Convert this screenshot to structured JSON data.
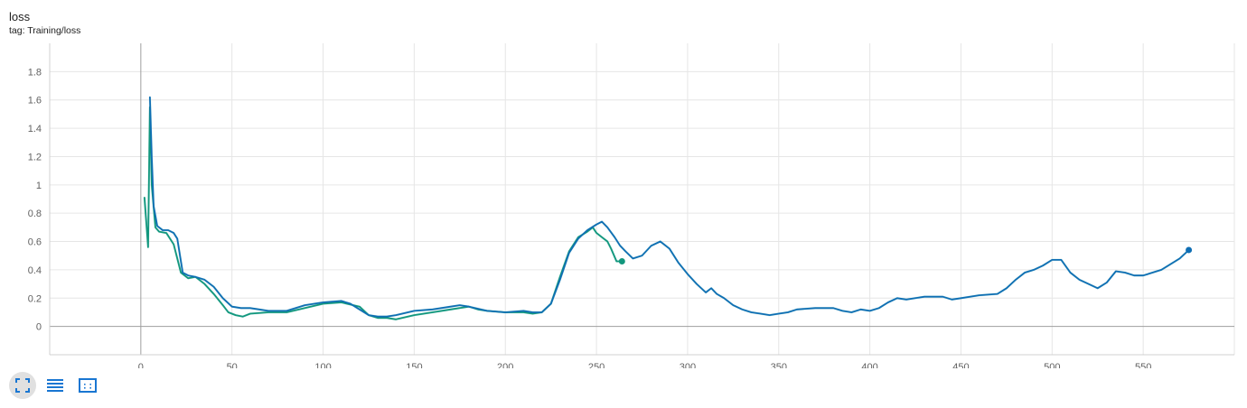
{
  "card": {
    "title": "loss",
    "tag": "tag: Training/loss"
  },
  "colors": {
    "series_blue": "#0f6eb4",
    "series_green": "#12977d",
    "smoothed_raw": "#b2dfdb",
    "grid": "#e6e6e6",
    "axis": "#9e9e9e",
    "toolbar_icon": "#1976d2"
  },
  "toolbar": {
    "icons": [
      "fit-domain-icon",
      "log-scale-icon",
      "expand-chart-icon"
    ]
  },
  "chart_data": {
    "type": "line",
    "title": "",
    "xlabel": "",
    "ylabel": "",
    "xlim": [
      -50,
      600
    ],
    "ylim": [
      -0.2,
      2.0
    ],
    "x_ticks": [
      0,
      50,
      100,
      150,
      200,
      250,
      300,
      350,
      400,
      450,
      500,
      550
    ],
    "y_ticks": [
      0,
      0.2,
      0.4,
      0.6,
      0.8,
      1,
      1.2,
      1.4,
      1.6,
      1.8
    ],
    "grid": true,
    "legend": "none",
    "series": [
      {
        "color": "#12977d",
        "points": [
          [
            2,
            0.91
          ],
          [
            4,
            0.56
          ],
          [
            5,
            1.55
          ],
          [
            6,
            1.0
          ],
          [
            8,
            0.7
          ],
          [
            10,
            0.67
          ],
          [
            14,
            0.66
          ],
          [
            18,
            0.58
          ],
          [
            22,
            0.38
          ],
          [
            26,
            0.34
          ],
          [
            30,
            0.35
          ],
          [
            35,
            0.3
          ],
          [
            40,
            0.23
          ],
          [
            45,
            0.15
          ],
          [
            48,
            0.1
          ],
          [
            52,
            0.08
          ],
          [
            56,
            0.07
          ],
          [
            60,
            0.09
          ],
          [
            70,
            0.1
          ],
          [
            80,
            0.1
          ],
          [
            90,
            0.13
          ],
          [
            100,
            0.16
          ],
          [
            110,
            0.17
          ],
          [
            120,
            0.14
          ],
          [
            125,
            0.08
          ],
          [
            130,
            0.06
          ],
          [
            135,
            0.06
          ],
          [
            140,
            0.05
          ],
          [
            150,
            0.08
          ],
          [
            160,
            0.1
          ],
          [
            170,
            0.12
          ],
          [
            180,
            0.14
          ],
          [
            185,
            0.12
          ],
          [
            190,
            0.11
          ],
          [
            200,
            0.1
          ],
          [
            210,
            0.1
          ],
          [
            215,
            0.09
          ],
          [
            220,
            0.1
          ],
          [
            225,
            0.16
          ],
          [
            230,
            0.35
          ],
          [
            235,
            0.53
          ],
          [
            240,
            0.63
          ],
          [
            245,
            0.67
          ],
          [
            248,
            0.7
          ],
          [
            250,
            0.66
          ],
          [
            253,
            0.63
          ],
          [
            256,
            0.6
          ],
          [
            258,
            0.55
          ],
          [
            261,
            0.46
          ],
          [
            264,
            0.46
          ]
        ]
      },
      {
        "color": "#0f6eb4",
        "points": [
          [
            5,
            1.62
          ],
          [
            6,
            1.2
          ],
          [
            7,
            0.85
          ],
          [
            9,
            0.71
          ],
          [
            12,
            0.68
          ],
          [
            15,
            0.68
          ],
          [
            18,
            0.66
          ],
          [
            20,
            0.62
          ],
          [
            23,
            0.38
          ],
          [
            26,
            0.36
          ],
          [
            30,
            0.35
          ],
          [
            35,
            0.33
          ],
          [
            40,
            0.28
          ],
          [
            45,
            0.2
          ],
          [
            50,
            0.14
          ],
          [
            55,
            0.13
          ],
          [
            60,
            0.13
          ],
          [
            65,
            0.12
          ],
          [
            70,
            0.11
          ],
          [
            80,
            0.11
          ],
          [
            90,
            0.15
          ],
          [
            100,
            0.17
          ],
          [
            110,
            0.18
          ],
          [
            115,
            0.16
          ],
          [
            120,
            0.12
          ],
          [
            125,
            0.08
          ],
          [
            130,
            0.07
          ],
          [
            135,
            0.07
          ],
          [
            140,
            0.08
          ],
          [
            150,
            0.11
          ],
          [
            160,
            0.12
          ],
          [
            170,
            0.14
          ],
          [
            175,
            0.15
          ],
          [
            180,
            0.14
          ],
          [
            190,
            0.11
          ],
          [
            200,
            0.1
          ],
          [
            210,
            0.11
          ],
          [
            215,
            0.1
          ],
          [
            220,
            0.1
          ],
          [
            225,
            0.16
          ],
          [
            230,
            0.33
          ],
          [
            235,
            0.52
          ],
          [
            240,
            0.62
          ],
          [
            245,
            0.68
          ],
          [
            250,
            0.72
          ],
          [
            253,
            0.74
          ],
          [
            256,
            0.7
          ],
          [
            260,
            0.63
          ],
          [
            263,
            0.57
          ],
          [
            266,
            0.53
          ],
          [
            270,
            0.48
          ],
          [
            275,
            0.5
          ],
          [
            280,
            0.57
          ],
          [
            285,
            0.6
          ],
          [
            290,
            0.55
          ],
          [
            295,
            0.45
          ],
          [
            300,
            0.37
          ],
          [
            305,
            0.3
          ],
          [
            310,
            0.24
          ],
          [
            313,
            0.27
          ],
          [
            316,
            0.23
          ],
          [
            320,
            0.2
          ],
          [
            325,
            0.15
          ],
          [
            330,
            0.12
          ],
          [
            335,
            0.1
          ],
          [
            340,
            0.09
          ],
          [
            345,
            0.08
          ],
          [
            350,
            0.09
          ],
          [
            355,
            0.1
          ],
          [
            360,
            0.12
          ],
          [
            370,
            0.13
          ],
          [
            380,
            0.13
          ],
          [
            385,
            0.11
          ],
          [
            390,
            0.1
          ],
          [
            395,
            0.12
          ],
          [
            400,
            0.11
          ],
          [
            405,
            0.13
          ],
          [
            410,
            0.17
          ],
          [
            415,
            0.2
          ],
          [
            420,
            0.19
          ],
          [
            430,
            0.21
          ],
          [
            440,
            0.21
          ],
          [
            445,
            0.19
          ],
          [
            450,
            0.2
          ],
          [
            460,
            0.22
          ],
          [
            470,
            0.23
          ],
          [
            475,
            0.27
          ],
          [
            480,
            0.33
          ],
          [
            485,
            0.38
          ],
          [
            490,
            0.4
          ],
          [
            495,
            0.43
          ],
          [
            500,
            0.47
          ],
          [
            505,
            0.47
          ],
          [
            510,
            0.38
          ],
          [
            515,
            0.33
          ],
          [
            520,
            0.3
          ],
          [
            525,
            0.27
          ],
          [
            530,
            0.31
          ],
          [
            535,
            0.39
          ],
          [
            540,
            0.38
          ],
          [
            545,
            0.36
          ],
          [
            550,
            0.36
          ],
          [
            560,
            0.4
          ],
          [
            570,
            0.48
          ],
          [
            575,
            0.54
          ]
        ]
      }
    ]
  }
}
